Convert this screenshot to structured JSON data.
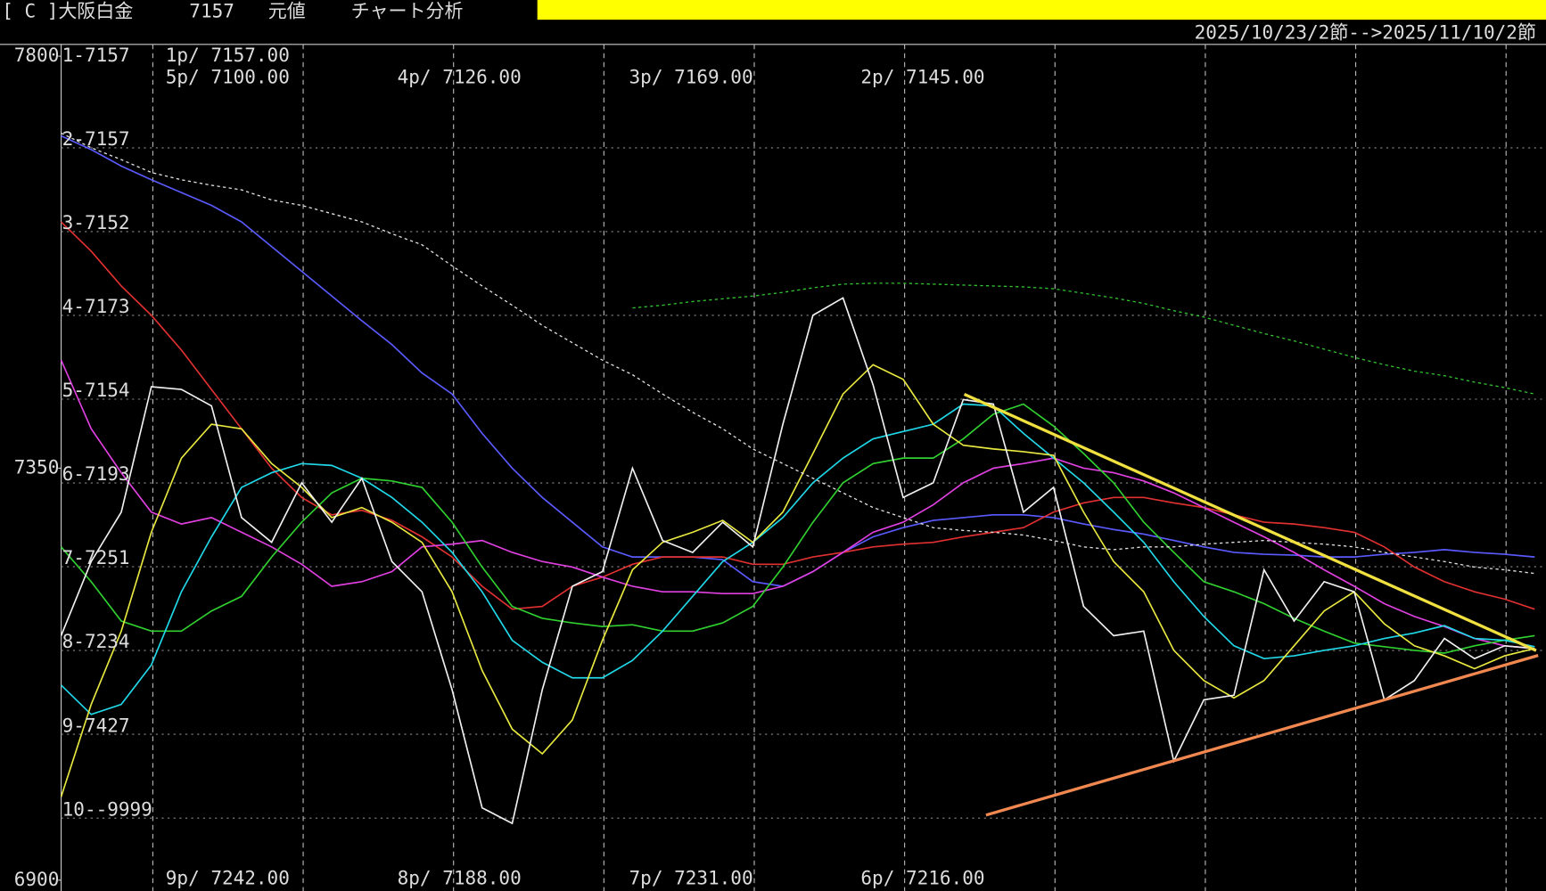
{
  "header": {
    "market": "[ C ]大阪白金",
    "code": "7157",
    "mode": "元値",
    "title": "チャート分析",
    "date_range": "2025/10/23/2節-->2025/11/10/2節"
  },
  "row_labels": [
    "1-7157",
    "2-7157",
    "3-7152",
    "4-7173",
    "5-7154",
    "6-7193",
    "7-7251",
    "8-7234",
    "9-7427",
    "10--9999"
  ],
  "top_labels": [
    "1p/ 7157.00",
    "5p/ 7100.00",
    "4p/ 7126.00",
    "3p/ 7169.00",
    "2p/ 7145.00"
  ],
  "bottom_labels": [
    "9p/ 7242.00",
    "8p/ 7188.00",
    "7p/ 7231.00",
    "6p/ 7216.00"
  ],
  "chart_data": {
    "type": "line",
    "ylim": [
      6900,
      7800
    ],
    "yticks": [
      6900,
      7350,
      7800
    ],
    "categories": [
      null,
      null,
      null,
      null,
      null,
      null,
      null,
      null,
      null,
      null,
      null,
      null,
      null,
      null,
      null,
      null,
      null,
      null,
      null,
      null,
      null,
      null,
      null,
      null,
      null,
      null,
      null,
      null,
      null,
      null,
      null,
      null,
      null,
      null,
      null,
      null,
      null,
      null,
      null,
      null,
      null,
      null,
      null,
      null,
      null,
      null,
      null,
      null,
      null,
      null
    ],
    "series": [
      {
        "color": "#5a5aff",
        "style": "solid",
        "values": [
          7713,
          7698,
          7680,
          7665,
          7651,
          7637,
          7619,
          7592,
          7565,
          7538,
          7511,
          7485,
          7454,
          7431,
          7388,
          7350,
          7318,
          7291,
          7264,
          7253,
          7253,
          7253,
          7250,
          7226,
          7221,
          7237,
          7258,
          7275,
          7285,
          7293,
          7296,
          7299,
          7299,
          7296,
          7289,
          7283,
          7278,
          7271,
          7264,
          7258,
          7256,
          7255,
          7253,
          7253,
          7256,
          7258,
          7261,
          7258,
          7256,
          7253
        ]
      },
      {
        "color": "#e03030",
        "style": "solid",
        "values": [
          7619,
          7587,
          7549,
          7517,
          7479,
          7436,
          7393,
          7350,
          7318,
          7299,
          7304,
          7293,
          7275,
          7253,
          7221,
          7196,
          7199,
          7221,
          7231,
          7245,
          7253,
          7253,
          7253,
          7245,
          7245,
          7253,
          7258,
          7264,
          7267,
          7269,
          7275,
          7280,
          7285,
          7302,
          7312,
          7318,
          7318,
          7312,
          7307,
          7299,
          7291,
          7289,
          7285,
          7280,
          7264,
          7242,
          7226,
          7215,
          7207,
          7196
        ]
      },
      {
        "color": "#e040e0",
        "style": "solid",
        "values": [
          7468,
          7393,
          7345,
          7302,
          7289,
          7296,
          7280,
          7264,
          7245,
          7221,
          7226,
          7237,
          7264,
          7267,
          7271,
          7258,
          7248,
          7242,
          7231,
          7221,
          7215,
          7215,
          7213,
          7213,
          7221,
          7237,
          7258,
          7280,
          7291,
          7310,
          7334,
          7350,
          7355,
          7361,
          7350,
          7345,
          7336,
          7323,
          7307,
          7291,
          7275,
          7258,
          7239,
          7221,
          7202,
          7188,
          7177,
          7164,
          7156,
          7153
        ]
      },
      {
        "color": "#30d030",
        "style": "solid",
        "values": [
          7264,
          7226,
          7183,
          7172,
          7172,
          7194,
          7210,
          7253,
          7291,
          7323,
          7339,
          7336,
          7329,
          7291,
          7242,
          7199,
          7186,
          7181,
          7177,
          7179,
          7172,
          7172,
          7181,
          7199,
          7242,
          7291,
          7334,
          7355,
          7361,
          7361,
          7382,
          7409,
          7420,
          7396,
          7366,
          7334,
          7291,
          7258,
          7226,
          7215,
          7202,
          7186,
          7172,
          7159,
          7155,
          7151,
          7148,
          7156,
          7162,
          7167
        ]
      },
      {
        "color": "#20d8e8",
        "style": "solid",
        "values": [
          7113,
          7081,
          7092,
          7135,
          7215,
          7275,
          7329,
          7345,
          7355,
          7353,
          7339,
          7318,
          7291,
          7258,
          7215,
          7162,
          7138,
          7121,
          7121,
          7140,
          7172,
          7210,
          7248,
          7269,
          7296,
          7334,
          7361,
          7382,
          7390,
          7398,
          7420,
          7418,
          7388,
          7361,
          7334,
          7302,
          7269,
          7226,
          7188,
          7156,
          7142,
          7145,
          7151,
          7156,
          7164,
          7170,
          7178,
          7164,
          7162,
          7155
        ]
      },
      {
        "color": "#e8e840",
        "style": "solid",
        "values": [
          6991,
          7092,
          7172,
          7280,
          7361,
          7398,
          7393,
          7355,
          7329,
          7296,
          7307,
          7291,
          7269,
          7215,
          7129,
          7065,
          7038,
          7075,
          7162,
          7239,
          7269,
          7280,
          7293,
          7269,
          7302,
          7366,
          7431,
          7463,
          7447,
          7398,
          7375,
          7371,
          7368,
          7364,
          7302,
          7248,
          7215,
          7151,
          7118,
          7099,
          7118,
          7156,
          7194,
          7215,
          7180,
          7156,
          7145,
          7131,
          7145,
          7153
        ]
      },
      {
        "color": "#f0f0f0",
        "style": "solid",
        "values": [
          7167,
          7248,
          7302,
          7439,
          7436,
          7418,
          7296,
          7269,
          7334,
          7291,
          7339,
          7248,
          7215,
          7108,
          6979,
          6962,
          7108,
          7221,
          7237,
          7350,
          7271,
          7258,
          7291,
          7264,
          7398,
          7517,
          7536,
          7441,
          7318,
          7334,
          7425,
          7420,
          7302,
          7329,
          7199,
          7167,
          7172,
          7030,
          7097,
          7102,
          7239,
          7183,
          7226,
          7215,
          7097,
          7118,
          7164,
          7142,
          7156,
          7153
        ]
      },
      {
        "color": "#e0e0e0",
        "style": "dashed",
        "values": [
          7716,
          7700,
          7687,
          7673,
          7665,
          7659,
          7654,
          7643,
          7637,
          7628,
          7619,
          7606,
          7594,
          7571,
          7549,
          7528,
          7506,
          7487,
          7468,
          7452,
          7431,
          7411,
          7393,
          7371,
          7355,
          7339,
          7323,
          7307,
          7296,
          7285,
          7282,
          7280,
          7277,
          7271,
          7264,
          7261,
          7264,
          7264,
          7267,
          7269,
          7271,
          7269,
          7267,
          7264,
          7258,
          7253,
          7248,
          7242,
          7239,
          7235
        ]
      },
      {
        "color": "#30c030",
        "style": "dashed",
        "values": [
          null,
          null,
          null,
          null,
          null,
          null,
          null,
          null,
          null,
          null,
          null,
          null,
          null,
          null,
          null,
          null,
          null,
          null,
          null,
          7525,
          7528,
          7532,
          7535,
          7538,
          7542,
          7547,
          7551,
          7552,
          7552,
          7551,
          7550,
          7549,
          7548,
          7546,
          7541,
          7536,
          7530,
          7522,
          7515,
          7506,
          7497,
          7489,
          7480,
          7471,
          7463,
          7456,
          7451,
          7444,
          7438,
          7431
        ]
      }
    ]
  }
}
